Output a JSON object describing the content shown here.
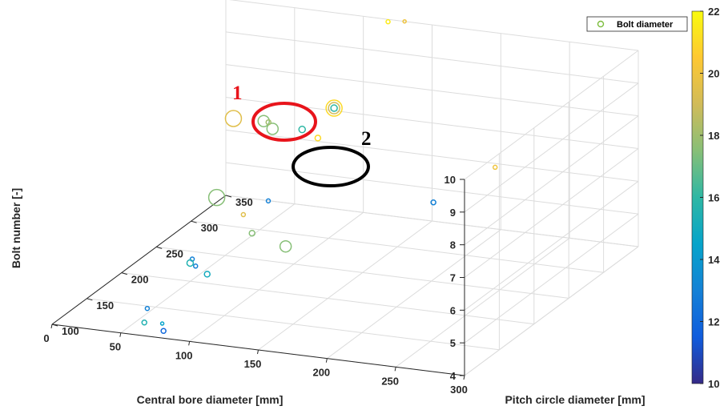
{
  "chart_data": {
    "type": "scatter",
    "xlabel": "Central bore diameter [mm]",
    "ylabel": "Pitch circle diameter [mm]",
    "zlabel": "Bolt number [-]",
    "x_ticks": [
      "300",
      "250",
      "200",
      "150",
      "100",
      "50",
      "0"
    ],
    "y_ticks": [
      "100",
      "150",
      "200",
      "250",
      "300",
      "350"
    ],
    "z_ticks": [
      "4",
      "5",
      "6",
      "7",
      "8",
      "9",
      "10"
    ],
    "xlim": [
      0,
      300
    ],
    "ylim": [
      100,
      350
    ],
    "zlim": [
      4,
      10
    ],
    "grid": true,
    "legend": {
      "label": "Bolt diameter",
      "placement": "top-right"
    },
    "colorbar": {
      "ticks": [
        "10",
        "12",
        "14",
        "16",
        "18",
        "20",
        "22"
      ],
      "range": [
        10,
        22
      ]
    },
    "annotations": [
      {
        "text": "1",
        "color": "#e8141b"
      },
      {
        "text": "2",
        "color": "#000000"
      }
    ],
    "points": [
      {
        "x": 75,
        "y": 112,
        "z": 4,
        "c": 12,
        "size": 2
      },
      {
        "x": 46,
        "y": 146,
        "z": 4,
        "c": 13,
        "size": 1.5
      },
      {
        "x": 68,
        "y": 124,
        "z": 4,
        "c": 14.5,
        "size": 1
      },
      {
        "x": 56,
        "y": 122,
        "z": 4,
        "c": 15.5,
        "size": 2
      },
      {
        "x": 60,
        "y": 183,
        "z": 5,
        "c": 13,
        "size": 1.5
      },
      {
        "x": 68,
        "y": 172,
        "z": 5,
        "c": 13,
        "size": 1.5
      },
      {
        "x": 62,
        "y": 176,
        "z": 5,
        "c": 15.5,
        "size": 3
      },
      {
        "x": 82,
        "y": 161,
        "z": 5,
        "c": 15,
        "size": 2.5
      },
      {
        "x": 82,
        "y": 213,
        "z": 6,
        "c": 19.5,
        "size": 1.5
      },
      {
        "x": 103,
        "y": 184,
        "z": 6,
        "c": 17.5,
        "size": 2.5
      },
      {
        "x": 135,
        "y": 169,
        "z": 6,
        "c": 17.5,
        "size": 6
      },
      {
        "x": 51,
        "y": 236,
        "z": 6,
        "c": 17.5,
        "size": 9
      },
      {
        "x": 86,
        "y": 241,
        "z": 6,
        "c": 13,
        "size": 1.5
      },
      {
        "x": 245,
        "y": 164,
        "z": 8,
        "c": 13,
        "size": 2
      },
      {
        "x": 254,
        "y": 235,
        "z": 8,
        "c": 20,
        "size": 1.5
      },
      {
        "x": 102,
        "y": 258,
        "z": 8,
        "c": 16,
        "size": 3
      },
      {
        "x": 83,
        "y": 253,
        "z": 8,
        "c": 17.5,
        "size": 6
      },
      {
        "x": 71,
        "y": 264,
        "z": 8,
        "c": 17.5,
        "size": 6
      },
      {
        "x": 75,
        "y": 263,
        "z": 8,
        "c": 18,
        "size": 2
      },
      {
        "x": 50,
        "y": 262,
        "z": 8,
        "c": 19.5,
        "size": 9
      },
      {
        "x": 119,
        "y": 247,
        "z": 8,
        "c": 21,
        "size": 2.5
      },
      {
        "x": 104,
        "y": 300,
        "z": 8,
        "c": 21,
        "size": 9
      },
      {
        "x": 104,
        "y": 300,
        "z": 8,
        "c": 19,
        "size": 6
      },
      {
        "x": 104,
        "y": 300,
        "z": 8,
        "c": 16,
        "size": 3
      },
      {
        "x": 120,
        "y": 346,
        "z": 10,
        "c": 21.5,
        "size": 1.5
      },
      {
        "x": 130,
        "y": 350,
        "z": 10,
        "c": 20,
        "size": 1
      }
    ]
  }
}
